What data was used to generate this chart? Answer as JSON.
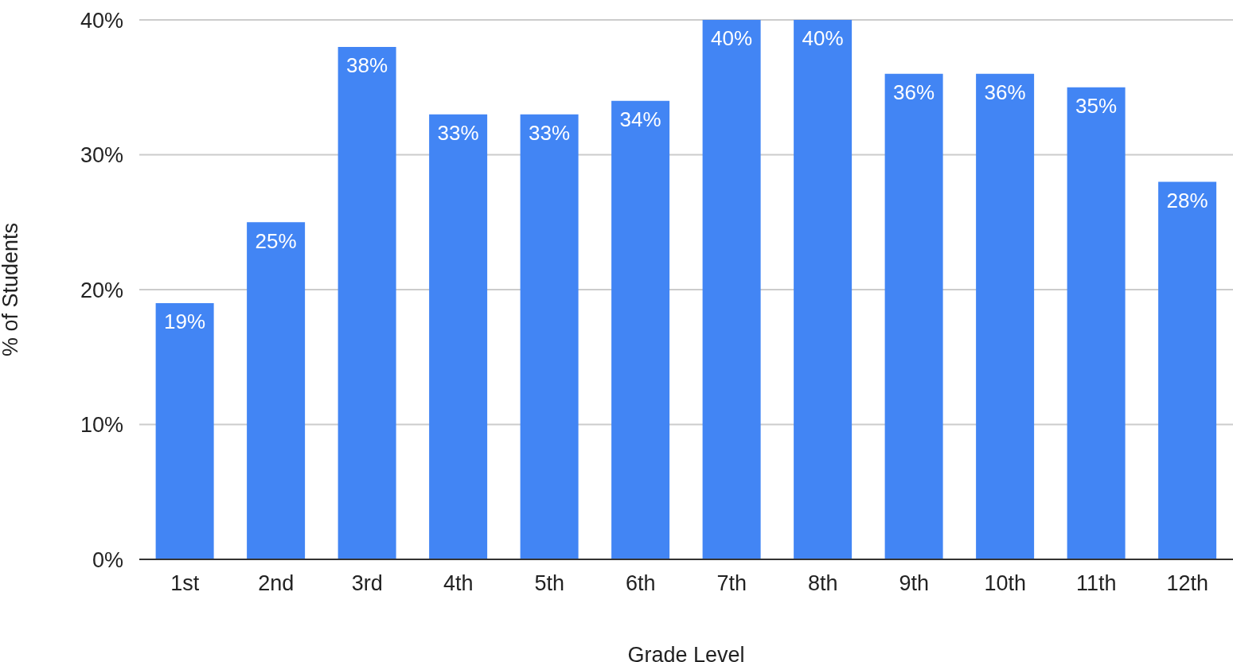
{
  "chart_data": {
    "type": "bar",
    "xlabel": "Grade Level",
    "ylabel": "% of Students",
    "categories": [
      "1st",
      "2nd",
      "3rd",
      "4th",
      "5th",
      "6th",
      "7th",
      "8th",
      "9th",
      "10th",
      "11th",
      "12th"
    ],
    "values": [
      19,
      25,
      38,
      33,
      33,
      34,
      40,
      40,
      36,
      36,
      35,
      28
    ],
    "value_labels": [
      "19%",
      "25%",
      "38%",
      "33%",
      "33%",
      "34%",
      "40%",
      "40%",
      "36%",
      "36%",
      "35%",
      "28%"
    ],
    "color": "#4285f4",
    "ylim": [
      0,
      40
    ],
    "yticks": [
      {
        "value": 0,
        "label": "0%"
      },
      {
        "value": 10,
        "label": "10%"
      },
      {
        "value": 20,
        "label": "20%"
      },
      {
        "value": 30,
        "label": "30%"
      },
      {
        "value": 40,
        "label": "40%"
      }
    ],
    "grid": "y",
    "legend": false
  }
}
